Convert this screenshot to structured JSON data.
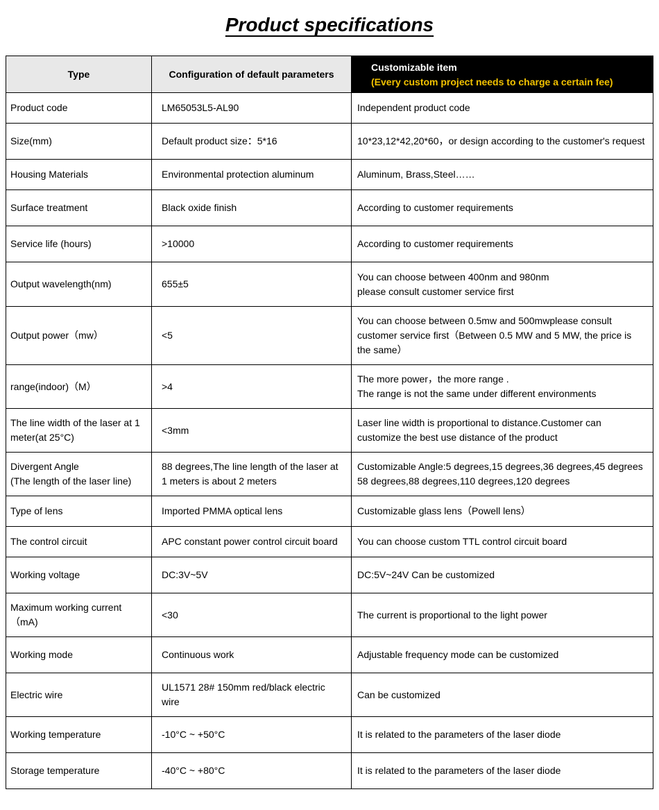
{
  "title": "Product specifications",
  "header": {
    "type": "Type",
    "config": "Configuration of default parameters",
    "custom_title": "Customizable item",
    "custom_sub": "(Every custom project needs to charge a certain fee)"
  },
  "rows": [
    {
      "type": "Product code",
      "config": "LM65053L5-AL90",
      "custom": "Independent product code",
      "h": "rshort"
    },
    {
      "type": "Size(mm)",
      "config": "Default product size：5*16",
      "custom": "10*23,12*42,20*60，or design according to the customer's request",
      "h": "rmed"
    },
    {
      "type": "Housing Materials",
      "config": "Environmental protection aluminum",
      "custom": "Aluminum, Brass,Steel……",
      "h": "rshort"
    },
    {
      "type": "Surface treatment",
      "config": "Black oxide finish",
      "custom": "According to customer requirements",
      "h": "rmed"
    },
    {
      "type": "Service life (hours)",
      "config": ">10000",
      "custom": "According to customer requirements",
      "h": "rmed"
    },
    {
      "type": "Output wavelength(nm)",
      "config": "655±5",
      "custom": "You can choose between 400nm and 980nm\nplease consult customer service first",
      "h": "rtall"
    },
    {
      "type": "Output power（mw）",
      "config": "<5",
      "custom": "You can choose between 0.5mw and 500mwplease consult customer service first（Between 0.5 MW and 5 MW, the price is the same）",
      "h": "rtall"
    },
    {
      "type": "range(indoor)（M）",
      "config": ">4",
      "custom": "The more power，the more range .\nThe range is not the same under different environments",
      "h": "rmed"
    },
    {
      "type": "The line width of the laser at 1 meter(at 25°C)",
      "config": "<3mm",
      "custom": "Laser line width is proportional to distance.Customer can customize the best use distance of the product",
      "h": "rmed"
    },
    {
      "type": "Divergent Angle\n(The length of the laser line)",
      "config": "88 degrees,The line length of the laser at 1 meters is about 2 meters",
      "custom": "Customizable Angle:5 degrees,15 degrees,36 degrees,45 degrees 58 degrees,88 degrees,110 degrees,120 degrees",
      "h": "rmed"
    },
    {
      "type": "Type of lens",
      "config": "Imported PMMA optical lens",
      "custom": "Customizable glass lens（Powell lens）",
      "h": "rshort"
    },
    {
      "type": "The control circuit",
      "config": "APC constant power control circuit board",
      "custom": "You can choose custom TTL control circuit board",
      "h": "rshort"
    },
    {
      "type": "Working voltage",
      "config": "DC:3V~5V",
      "custom": "DC:5V~24V Can be customized",
      "h": "rmed"
    },
    {
      "type": "Maximum working current（mA)",
      "config": "<30",
      "custom": "The current is proportional to the light power",
      "h": "rmed"
    },
    {
      "type": "Working mode",
      "config": "Continuous work",
      "custom": "Adjustable frequency mode can be customized",
      "h": "rmed"
    },
    {
      "type": " Electric wire",
      "config": "UL1571 28# 150mm red/black electric wire",
      "custom": "Can be customized",
      "h": "rmed"
    },
    {
      "type": "Working temperature",
      "config": "-10°C ~ +50°C",
      "custom": "It is related to the parameters of the laser diode",
      "h": "rmed"
    },
    {
      "type": "Storage temperature",
      "config": "-40°C ~ +80°C",
      "custom": "It is related to the parameters of the laser diode",
      "h": "rmed"
    }
  ]
}
